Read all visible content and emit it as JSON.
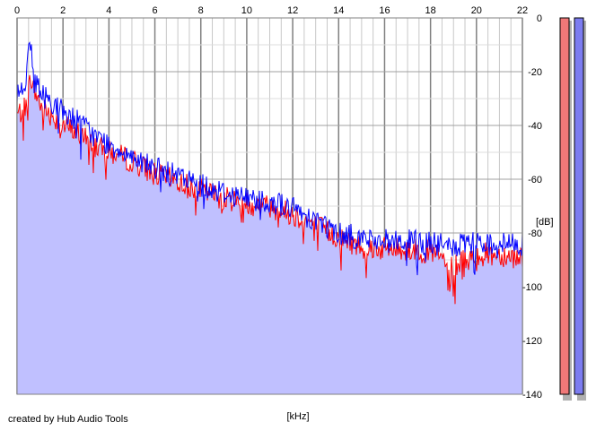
{
  "footer": {
    "credit": "created by Hub Audio Tools"
  },
  "chart_data": {
    "type": "line",
    "xlabel": "[kHz]",
    "ylabel": "[dB]",
    "xlim": [
      0,
      22
    ],
    "ylim": [
      -140,
      0
    ],
    "x_ticks": [
      "0",
      "2",
      "4",
      "6",
      "8",
      "10",
      "12",
      "14",
      "16",
      "18",
      "20",
      "22"
    ],
    "y_ticks": [
      "0",
      "-20",
      "-40",
      "-60",
      "-80",
      "-100",
      "-120",
      "-140"
    ],
    "grid": true,
    "x": [
      0,
      0.3,
      0.6,
      0.7,
      1.0,
      1.5,
      2.0,
      2.5,
      3.0,
      3.5,
      4.0,
      5.0,
      6.0,
      7.0,
      8.0,
      9.0,
      10.0,
      11.0,
      12.0,
      13.0,
      14.0,
      15.0,
      16.0,
      17.0,
      18.0,
      18.9,
      19.0,
      19.1,
      20.0,
      21.0,
      22.0
    ],
    "series": [
      {
        "color": "#ff0000",
        "values": [
          -36,
          -34,
          -22,
          -26,
          -32,
          -36,
          -40,
          -42,
          -45,
          -48,
          -50,
          -53,
          -58,
          -61,
          -64,
          -67,
          -69,
          -70,
          -73,
          -77,
          -82,
          -85,
          -86,
          -86,
          -87,
          -92,
          -102,
          -92,
          -88,
          -88,
          -89
        ]
      },
      {
        "color": "#0000ff",
        "values": [
          -27,
          -26,
          -9,
          -20,
          -28,
          -31,
          -35,
          -37,
          -41,
          -45,
          -47,
          -51,
          -56,
          -59,
          -62,
          -65,
          -67,
          -68,
          -71,
          -75,
          -80,
          -82,
          -83,
          -83,
          -84,
          -85,
          -86,
          -85,
          -84,
          -84,
          -84
        ]
      }
    ],
    "meters": [
      {
        "color": "#f07878"
      },
      {
        "color": "#7c7cf0"
      }
    ],
    "fill_color": "#c0c0ff"
  }
}
